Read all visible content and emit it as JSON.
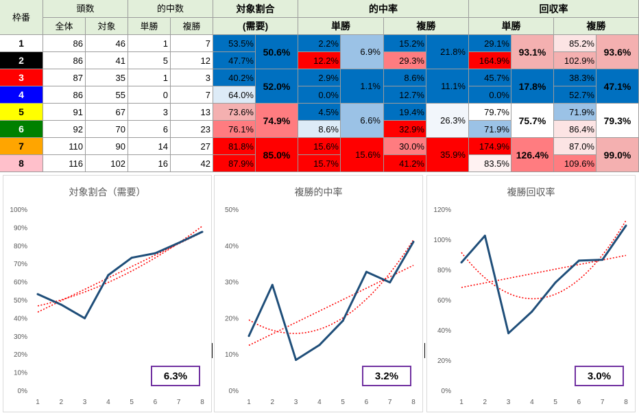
{
  "table": {
    "headers": {
      "waku": "枠番",
      "tosu": "頭数",
      "all": "全体",
      "taisho": "対象",
      "tekichu": "的中数",
      "tansho": "単勝",
      "fukusho": "複勝",
      "taisho_wariai": "対象割合",
      "juyo": "(需要)",
      "tekichuritsu": "的中率",
      "kaishuritsu": "回収率"
    },
    "rows": [
      {
        "waku": "1",
        "all": "86",
        "target": "46",
        "win": "1",
        "place": "7",
        "ratio": "53.5%",
        "win_rate": "2.2%",
        "place_rate": "15.2%",
        "win_ret": "29.1%",
        "place_ret": "85.2%"
      },
      {
        "waku": "2",
        "all": "86",
        "target": "41",
        "win": "5",
        "place": "12",
        "ratio": "47.7%",
        "win_rate": "12.2%",
        "place_rate": "29.3%",
        "win_ret": "164.9%",
        "place_ret": "102.9%"
      },
      {
        "waku": "3",
        "all": "87",
        "target": "35",
        "win": "1",
        "place": "3",
        "ratio": "40.2%",
        "win_rate": "2.9%",
        "place_rate": "8.6%",
        "win_ret": "45.7%",
        "place_ret": "38.3%"
      },
      {
        "waku": "4",
        "all": "86",
        "target": "55",
        "win": "0",
        "place": "7",
        "ratio": "64.0%",
        "win_rate": "0.0%",
        "place_rate": "12.7%",
        "win_ret": "0.0%",
        "place_ret": "52.7%"
      },
      {
        "waku": "5",
        "all": "91",
        "target": "67",
        "win": "3",
        "place": "13",
        "ratio": "73.6%",
        "win_rate": "4.5%",
        "place_rate": "19.4%",
        "win_ret": "79.7%",
        "place_ret": "71.9%"
      },
      {
        "waku": "6",
        "all": "92",
        "target": "70",
        "win": "6",
        "place": "23",
        "ratio": "76.1%",
        "win_rate": "8.6%",
        "place_rate": "32.9%",
        "win_ret": "71.9%",
        "place_ret": "86.4%"
      },
      {
        "waku": "7",
        "all": "110",
        "target": "90",
        "win": "14",
        "place": "27",
        "ratio": "81.8%",
        "win_rate": "15.6%",
        "place_rate": "30.0%",
        "win_ret": "174.9%",
        "place_ret": "87.0%"
      },
      {
        "waku": "8",
        "all": "116",
        "target": "102",
        "win": "16",
        "place": "42",
        "ratio": "87.9%",
        "win_rate": "15.7%",
        "place_rate": "41.2%",
        "win_ret": "83.5%",
        "place_ret": "109.6%"
      }
    ],
    "pairs": [
      {
        "ratio": "50.6%",
        "win_rate": "6.9%",
        "place_rate": "21.8%",
        "win_ret": "93.1%",
        "place_ret": "93.6%"
      },
      {
        "ratio": "52.0%",
        "win_rate": "1.1%",
        "place_rate": "11.1%",
        "win_ret": "17.8%",
        "place_ret": "47.1%"
      },
      {
        "ratio": "74.9%",
        "win_rate": "6.6%",
        "place_rate": "26.3%",
        "win_ret": "75.7%",
        "place_ret": "79.3%"
      },
      {
        "ratio": "85.0%",
        "win_rate": "15.6%",
        "place_rate": "35.9%",
        "win_ret": "126.4%",
        "place_ret": "99.0%"
      }
    ],
    "waku_colors": [
      "#ffffff",
      "#000000",
      "#ff0000",
      "#0000ff",
      "#ffff00",
      "#008000",
      "#ffa500",
      "#ffc0cb"
    ],
    "waku_text_colors": [
      "#000000",
      "#ffffff",
      "#ffffff",
      "#ffffff",
      "#000000",
      "#ffffff",
      "#000000",
      "#000000"
    ],
    "cell_colors": {
      "ratio": [
        "#0070c0",
        "#0070c0",
        "#0070c0",
        "#ddebf7",
        "#f4b0b0",
        "#ff7c80",
        "#ff0000",
        "#ff0000"
      ],
      "win_rate": [
        "#0070c0",
        "#ff0000",
        "#0070c0",
        "#0070c0",
        "#0070c0",
        "#ddebf7",
        "#ff0000",
        "#ff0000"
      ],
      "place_rate": [
        "#0070c0",
        "#ff7c80",
        "#0070c0",
        "#0070c0",
        "#0070c0",
        "#ff0000",
        "#ff7c80",
        "#ff0000"
      ],
      "win_ret": [
        "#0070c0",
        "#ff0000",
        "#0070c0",
        "#0070c0",
        "#ffffff",
        "#9bc2e6",
        "#ff0000",
        "#fff2f2"
      ],
      "place_ret": [
        "#fce4e4",
        "#f4b0b0",
        "#0070c0",
        "#0070c0",
        "#9bc2e6",
        "#fce4e4",
        "#fce4e4",
        "#ff7c80"
      ],
      "pair_ratio": [
        "#0070c0",
        "#0070c0",
        "#ff7c80",
        "#ff0000"
      ],
      "pair_win_rate": [
        "#9bc2e6",
        "#0070c0",
        "#9bc2e6",
        "#ff0000"
      ],
      "pair_place_rate": [
        "#0070c0",
        "#0070c0",
        "#f2f6fb",
        "#ff0000"
      ],
      "pair_win_ret": [
        "#f4b0b0",
        "#0070c0",
        "#ffffff",
        "#ff7c80"
      ],
      "pair_place_ret": [
        "#f4b0b0",
        "#0070c0",
        "#ffffff",
        "#f4b0b0"
      ]
    }
  },
  "chart_data": [
    {
      "type": "line",
      "title": "対象割合（需要）",
      "x": [
        1,
        2,
        3,
        4,
        5,
        6,
        7,
        8
      ],
      "series": [
        {
          "values": [
            53.5,
            47.7,
            40.2,
            64.0,
            73.6,
            76.1,
            81.8,
            87.9
          ]
        }
      ],
      "trendlines": [
        "linear",
        "polynomial"
      ],
      "ylim": [
        0,
        100
      ],
      "yticks": [
        "0%",
        "10%",
        "20%",
        "30%",
        "40%",
        "50%",
        "60%",
        "70%",
        "80%",
        "90%",
        "100%"
      ],
      "r_value": "6.3%",
      "line_color": "#1f4e79",
      "trend_color": "#ff0000"
    },
    {
      "type": "line",
      "title": "複勝的中率",
      "x": [
        1,
        2,
        3,
        4,
        5,
        6,
        7,
        8
      ],
      "series": [
        {
          "values": [
            15.2,
            29.3,
            8.6,
            12.7,
            19.4,
            32.9,
            30.0,
            41.2
          ]
        }
      ],
      "trendlines": [
        "linear",
        "polynomial"
      ],
      "ylim": [
        0,
        50
      ],
      "yticks": [
        "0%",
        "10%",
        "20%",
        "30%",
        "40%",
        "50%"
      ],
      "r_value": "3.2%",
      "line_color": "#1f4e79",
      "trend_color": "#ff0000"
    },
    {
      "type": "line",
      "title": "複勝回収率",
      "x": [
        1,
        2,
        3,
        4,
        5,
        6,
        7,
        8
      ],
      "series": [
        {
          "values": [
            85.2,
            102.9,
            38.3,
            52.7,
            71.9,
            86.4,
            87.0,
            109.6
          ]
        }
      ],
      "trendlines": [
        "linear",
        "polynomial"
      ],
      "ylim": [
        0,
        120
      ],
      "yticks": [
        "0%",
        "20%",
        "40%",
        "60%",
        "80%",
        "100%",
        "120%"
      ],
      "r_value": "3.0%",
      "line_color": "#1f4e79",
      "trend_color": "#ff0000"
    }
  ]
}
